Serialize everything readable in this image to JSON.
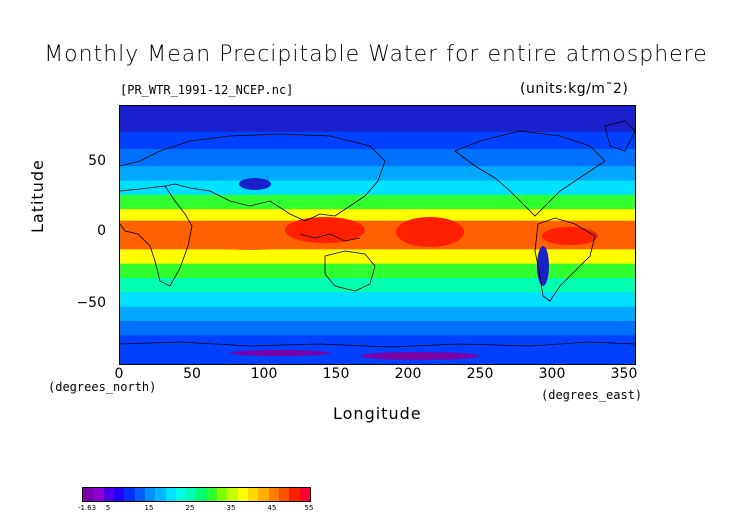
{
  "title": "Monthly Mean Precipitable Water for entire atmosphere",
  "subtitle": "[PR_WTR_1991-12_NCEP.nc]",
  "units": "(units:kg/m¯2)",
  "axes": {
    "y_label": "Latitude",
    "x_label": "Longitude",
    "y_units_note": "(degrees_north)",
    "x_units_note": "(degrees_east)",
    "y_ticks": [
      "50",
      "0",
      "−50"
    ],
    "x_ticks": [
      "0",
      "50",
      "100",
      "150",
      "200",
      "250",
      "300",
      "350"
    ]
  },
  "colorbar": {
    "labels": [
      "-1.63",
      "5",
      "15",
      "25",
      "35",
      "45",
      "55"
    ],
    "colors": [
      "#7a00a8",
      "#8a00d0",
      "#4a00e8",
      "#2000ff",
      "#0030ff",
      "#0060ff",
      "#0090ff",
      "#00b8ff",
      "#00e0ff",
      "#00ffe0",
      "#00ffb0",
      "#00ff70",
      "#30ff30",
      "#80ff00",
      "#c8ff00",
      "#ffff00",
      "#ffd800",
      "#ffb000",
      "#ff8000",
      "#ff5000",
      "#ff2000",
      "#ff0030"
    ]
  },
  "map": {
    "x_range": [
      0,
      357.5
    ],
    "y_range": [
      -90,
      90
    ],
    "palette": [
      "#1a20cc",
      "#0040ff",
      "#0070ff",
      "#00a8ff",
      "#00e0ff",
      "#00ffb0",
      "#30ff30",
      "#b0ff00",
      "#ffff00",
      "#ffb000",
      "#ff6000",
      "#ff2000"
    ],
    "levels_by_lat": [
      {
        "lat": 90,
        "level": 0
      },
      {
        "lat": 72,
        "level": 0
      },
      {
        "lat": 60,
        "level": 1
      },
      {
        "lat": 48,
        "level": 2
      },
      {
        "lat": 38,
        "level": 3
      },
      {
        "lat": 28,
        "level": 5
      },
      {
        "lat": 18,
        "level": 7
      },
      {
        "lat": 10,
        "level": 9
      },
      {
        "lat": 0,
        "level": 10
      },
      {
        "lat": -10,
        "level": 9
      },
      {
        "lat": -20,
        "level": 7
      },
      {
        "lat": -30,
        "level": 5
      },
      {
        "lat": -40,
        "level": 4
      },
      {
        "lat": -50,
        "level": 3
      },
      {
        "lat": -60,
        "level": 2
      },
      {
        "lat": -70,
        "level": 1
      },
      {
        "lat": -90,
        "level": 0
      }
    ]
  }
}
